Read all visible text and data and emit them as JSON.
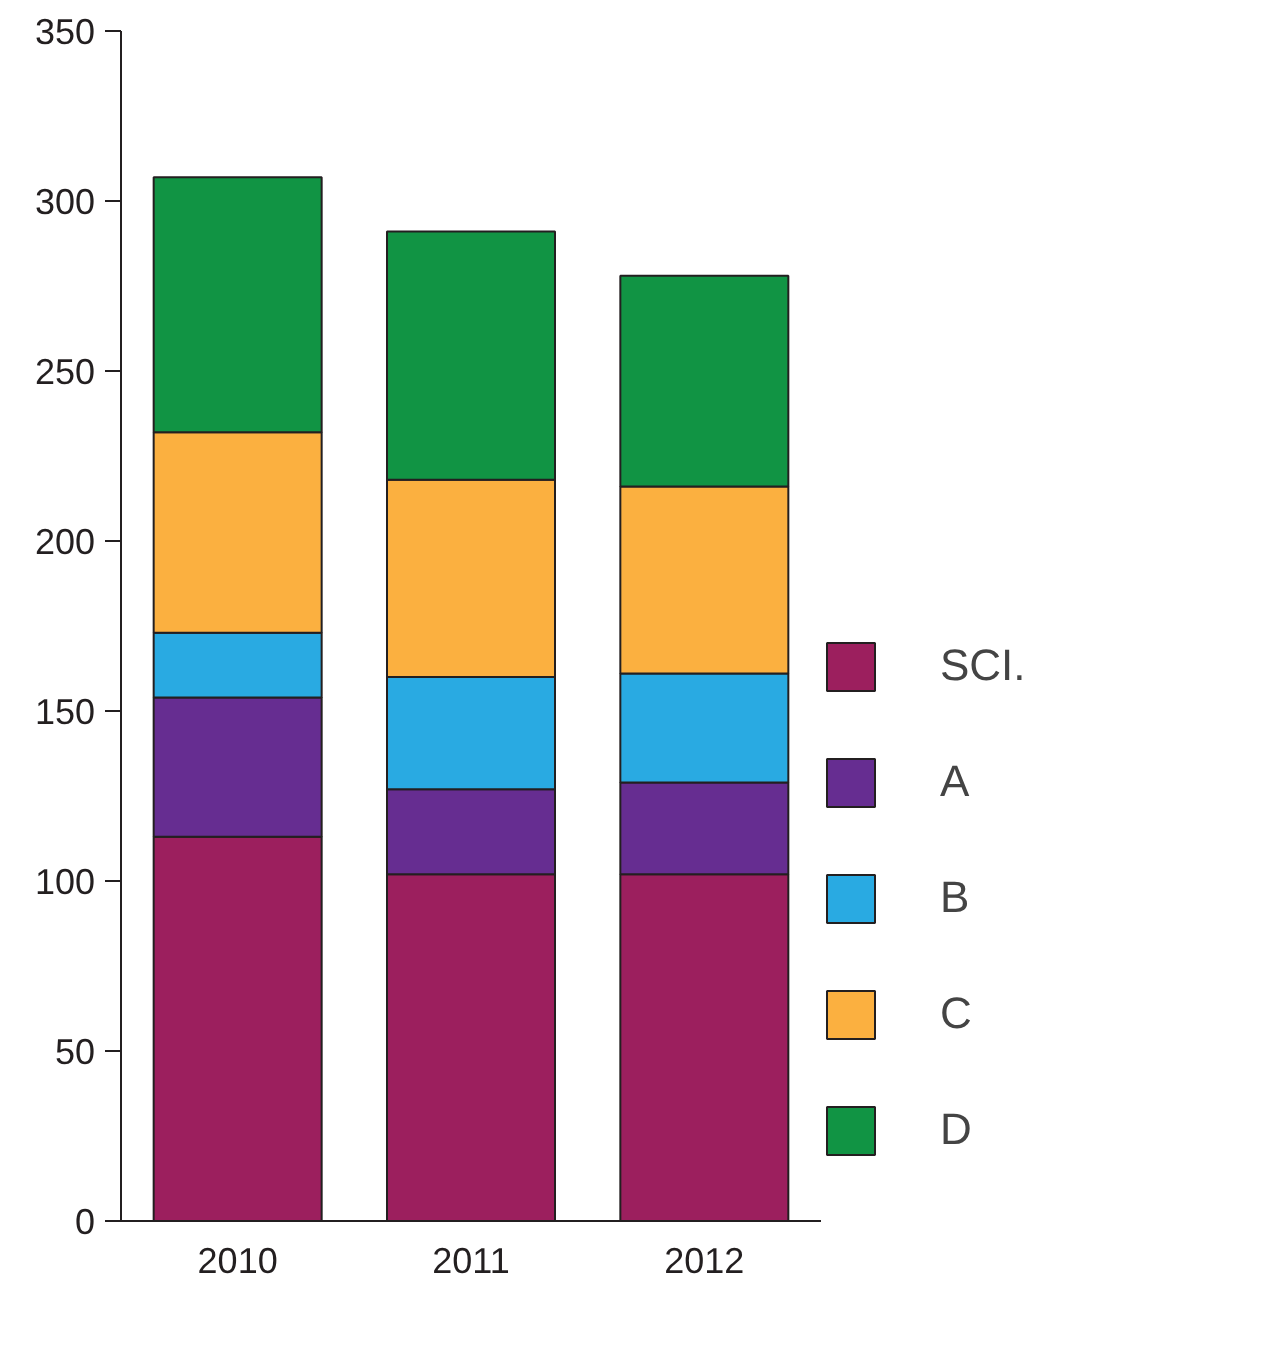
{
  "chart_data": {
    "type": "bar",
    "stacked": true,
    "categories": [
      "2010",
      "2011",
      "2012"
    ],
    "series": [
      {
        "name": "SCI.",
        "color": "#9c1f5e",
        "values": [
          113,
          102,
          102
        ]
      },
      {
        "name": "A",
        "color": "#662d91",
        "values": [
          41,
          25,
          27
        ]
      },
      {
        "name": "B",
        "color": "#29aae2",
        "values": [
          19,
          33,
          32
        ]
      },
      {
        "name": "C",
        "color": "#fbb040",
        "values": [
          59,
          58,
          55
        ]
      },
      {
        "name": "D",
        "color": "#119444",
        "values": [
          75,
          73,
          62
        ]
      }
    ],
    "ylim": [
      0,
      350
    ],
    "yticks": [
      0,
      50,
      100,
      150,
      200,
      250,
      300,
      350
    ],
    "grid": false,
    "legend": "right"
  }
}
